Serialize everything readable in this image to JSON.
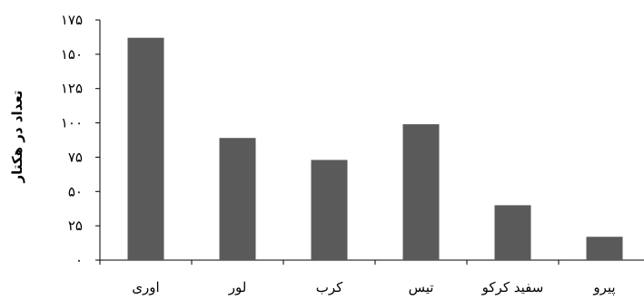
{
  "chart_data": {
    "type": "bar",
    "title": "",
    "xlabel": "",
    "ylabel": "تعداد در هکتار",
    "categories": [
      "اوری",
      "لور",
      "کرب",
      "تیس",
      "سفید کرکو",
      "پیرو"
    ],
    "values": [
      162,
      89,
      73,
      99,
      40,
      17
    ],
    "ylim": [
      0,
      175
    ],
    "yticks": [
      0,
      25,
      50,
      75,
      100,
      125,
      150,
      175
    ],
    "ytick_labels": [
      "۰",
      "۲۵",
      "۵۰",
      "۷۵",
      "۱۰۰",
      "۱۲۵",
      "۱۵۰",
      "۱۷۵"
    ],
    "grid": false,
    "legend": "none",
    "bar_color": "#5a5a5a"
  }
}
